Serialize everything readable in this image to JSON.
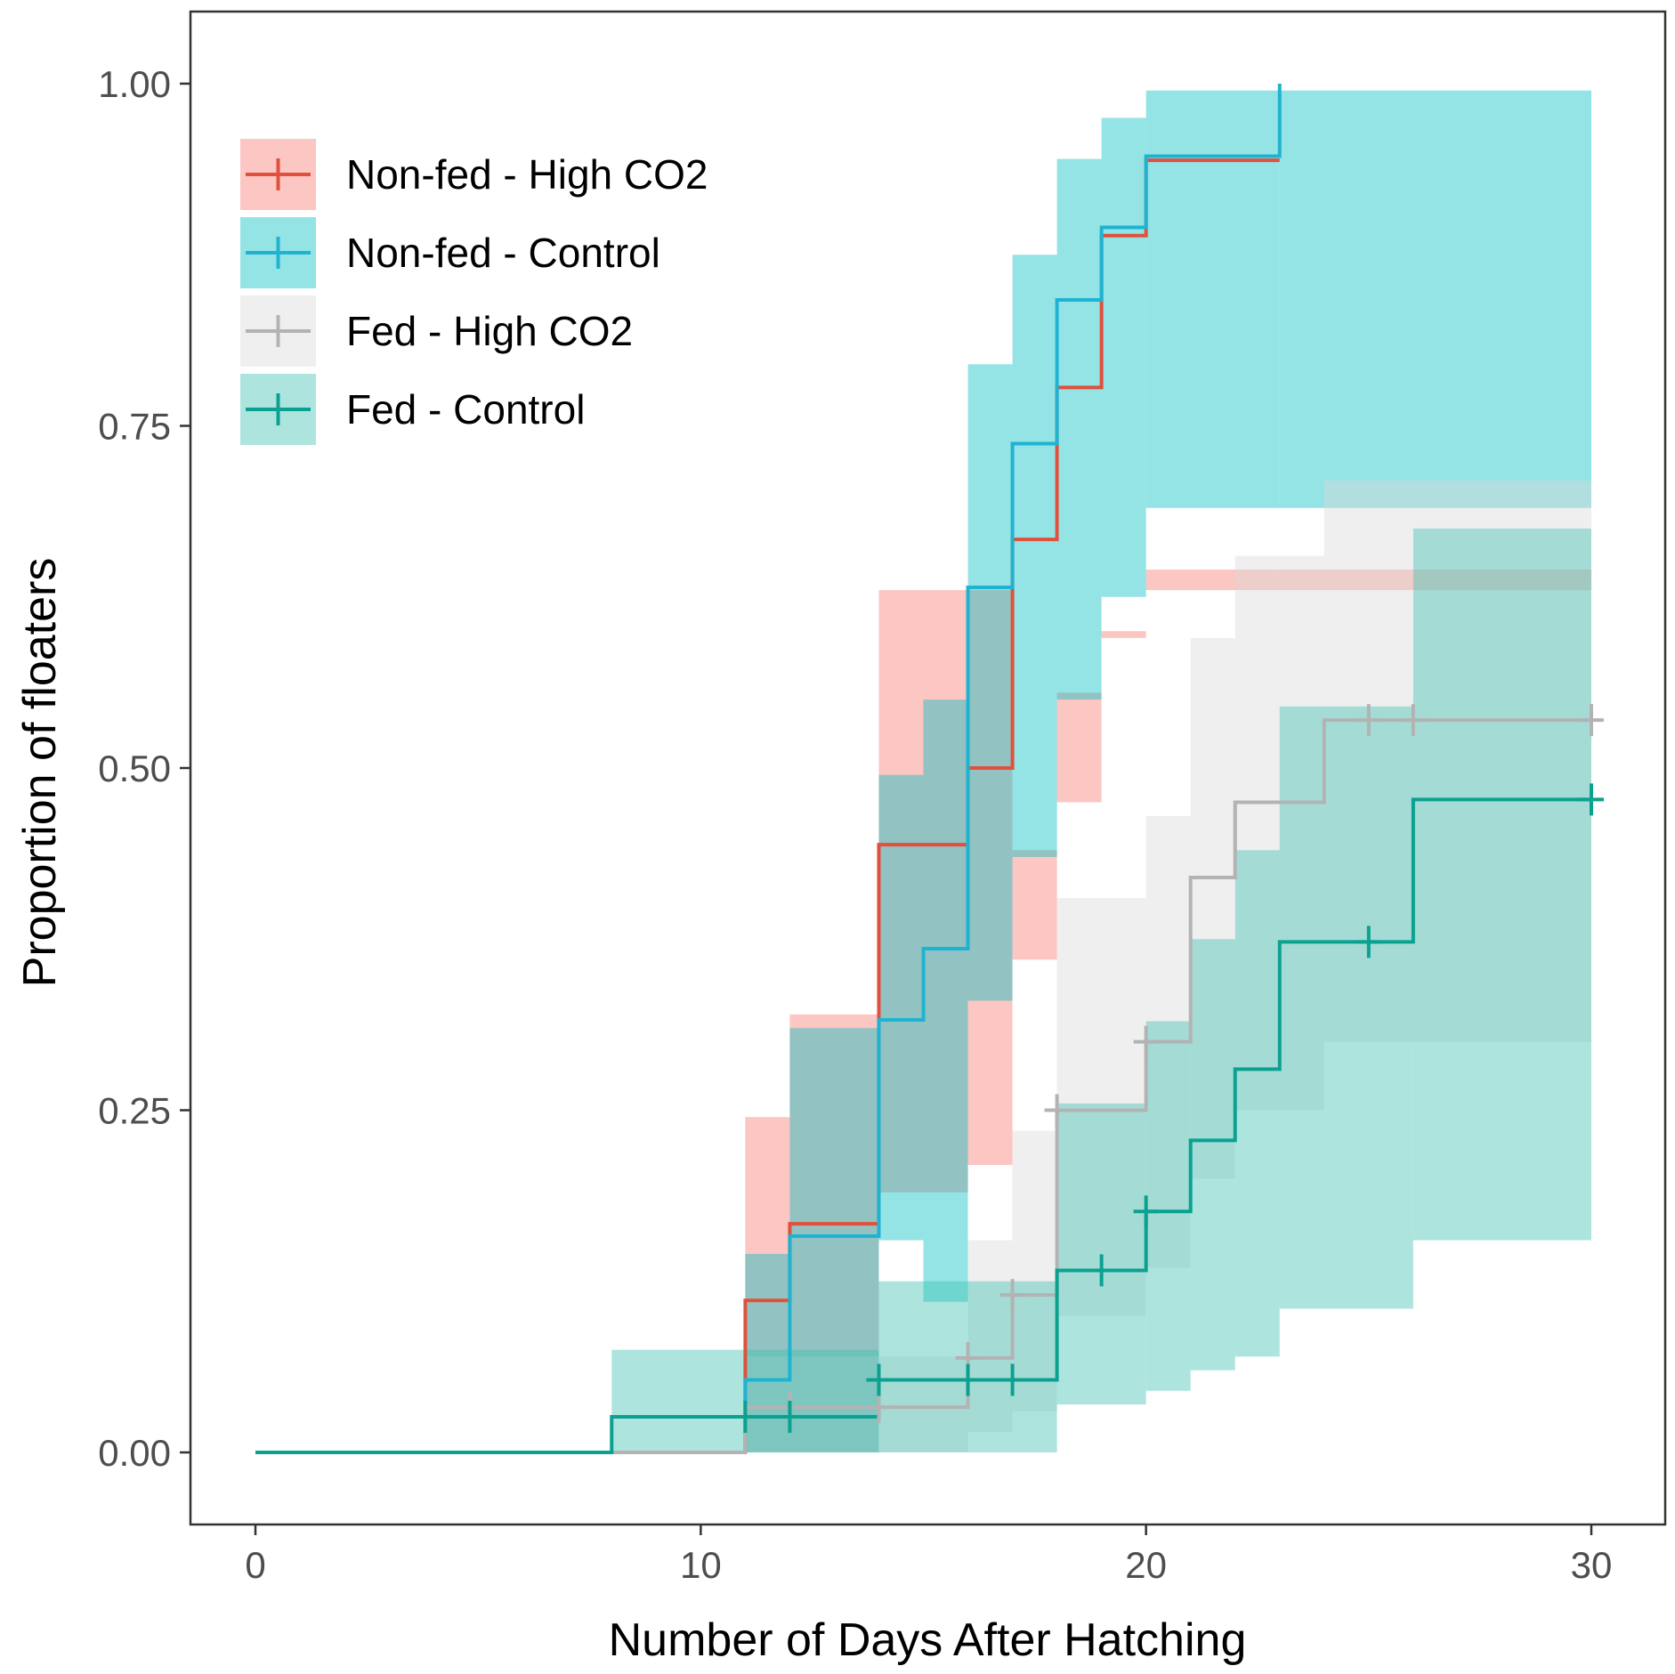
{
  "chart_data": {
    "type": "line",
    "subtype": "kaplan-meier step curves with confidence bands and censor marks",
    "xlabel": "Number of Days After Hatching",
    "ylabel": "Proportion of floaters",
    "xlim": [
      -1.5,
      31.5
    ],
    "ylim": [
      -0.05,
      1.055
    ],
    "x_ticks": [
      0,
      10,
      20,
      30
    ],
    "x_tick_labels": [
      "0",
      "10",
      "20",
      "30"
    ],
    "y_ticks": [
      0,
      0.25,
      0.5,
      0.75,
      1
    ],
    "y_tick_labels": [
      "0.00",
      "0.25",
      "0.50",
      "0.75",
      "1.00"
    ],
    "grid": false,
    "legend_position": "top-left",
    "series": [
      {
        "name": "Non-fed - High CO2",
        "color": "#e0503c",
        "band_color": "#f8766d",
        "x": [
          0,
          11,
          12,
          14,
          16,
          17,
          18,
          19,
          20,
          23
        ],
        "y": [
          0,
          0.111,
          0.167,
          0.444,
          0.5,
          0.667,
          0.778,
          0.889,
          0.944,
          0.944
        ],
        "lower": [
          0,
          0,
          0,
          0.19,
          0.21,
          0.36,
          0.475,
          0.595,
          0.63,
          0.63
        ],
        "upper": [
          0,
          0.245,
          0.32,
          0.63,
          0.63,
          0.44,
          0.555,
          0.6,
          0.645,
          0.645
        ],
        "censor_x": [],
        "censor_y": []
      },
      {
        "name": "Non-fed - Control",
        "color": "#1fb3d1",
        "band_color": "#00bfc4",
        "x": [
          0,
          11,
          12,
          14,
          15,
          16,
          17,
          18,
          19,
          20,
          23
        ],
        "y": [
          0,
          0.053,
          0.158,
          0.316,
          0.368,
          0.632,
          0.737,
          0.842,
          0.895,
          0.947,
          1.0
        ],
        "lower": [
          0,
          0,
          0,
          0.155,
          0.11,
          0.33,
          0.435,
          0.55,
          0.625,
          0.69,
          0.69
        ],
        "upper": [
          0,
          0.145,
          0.31,
          0.495,
          0.55,
          0.795,
          0.875,
          0.945,
          0.975,
          0.995,
          0.995
        ],
        "censor_x": [],
        "censor_y": []
      },
      {
        "name": "Fed - High CO2",
        "color": "#b3b3b3",
        "band_color": "#d9d9d9",
        "x": [
          0,
          11,
          16,
          17,
          18,
          20,
          21,
          22,
          24
        ],
        "y": [
          0,
          0.033,
          0.069,
          0.115,
          0.25,
          0.3,
          0.42,
          0.475,
          0.535
        ],
        "lower": [
          0,
          0,
          0.015,
          0.03,
          0.1,
          0.135,
          0.2,
          0.25,
          0.3
        ],
        "upper": [
          0,
          0.07,
          0.155,
          0.235,
          0.405,
          0.465,
          0.595,
          0.655,
          0.71
        ],
        "censor_x": [
          12,
          14,
          16,
          17,
          18,
          20,
          25,
          26,
          30
        ],
        "censor_y": [
          0.033,
          0.033,
          0.069,
          0.115,
          0.25,
          0.3,
          0.535,
          0.535,
          0.535
        ]
      },
      {
        "name": "Fed - Control",
        "color": "#0ba191",
        "band_color": "#3cc2b1",
        "x": [
          0,
          8,
          14,
          18,
          20,
          21,
          22,
          23,
          26
        ],
        "y": [
          0,
          0.026,
          0.053,
          0.133,
          0.176,
          0.228,
          0.28,
          0.373,
          0.477
        ],
        "lower": [
          0,
          0,
          0,
          0.035,
          0.045,
          0.06,
          0.07,
          0.105,
          0.155
        ],
        "upper": [
          0,
          0.075,
          0.125,
          0.255,
          0.315,
          0.375,
          0.44,
          0.545,
          0.675
        ],
        "censor_x": [
          11,
          12,
          14,
          16,
          17,
          19,
          20,
          25,
          30
        ],
        "censor_y": [
          0.026,
          0.026,
          0.053,
          0.053,
          0.053,
          0.133,
          0.176,
          0.373,
          0.477
        ]
      }
    ],
    "x_end": 30
  }
}
